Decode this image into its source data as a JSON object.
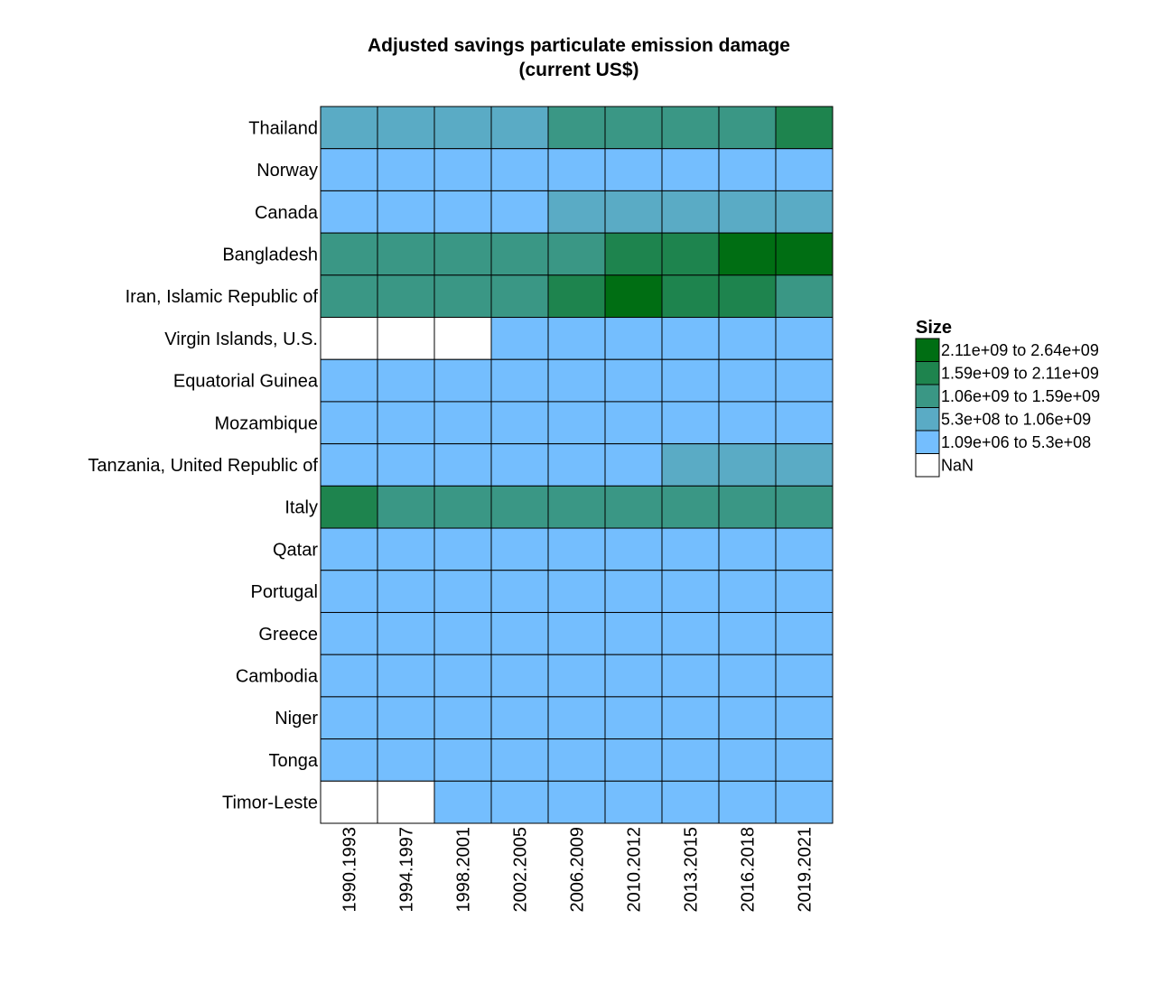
{
  "chart_data": {
    "type": "heatmap",
    "title": [
      "Adjusted savings particulate emission damage",
      "(current US$)"
    ],
    "rows": [
      "Thailand",
      "Norway",
      "Canada",
      "Bangladesh",
      "Iran, Islamic Republic of",
      "Virgin Islands, U.S.",
      "Equatorial Guinea",
      "Mozambique",
      "Tanzania, United Republic of",
      "Italy",
      "Qatar",
      "Portugal",
      "Greece",
      "Cambodia",
      "Niger",
      "Tonga",
      "Timor-Leste"
    ],
    "columns": [
      "1990.1993",
      "1994.1997",
      "1998.2001",
      "2002.2005",
      "2006.2009",
      "2010.2012",
      "2013.2015",
      "2016.2018",
      "2019.2021"
    ],
    "bin_index": [
      [
        1,
        1,
        1,
        1,
        2,
        2,
        2,
        2,
        3
      ],
      [
        0,
        0,
        0,
        0,
        0,
        0,
        0,
        0,
        0
      ],
      [
        0,
        0,
        0,
        0,
        1,
        1,
        1,
        1,
        1
      ],
      [
        2,
        2,
        2,
        2,
        2,
        3,
        3,
        4,
        4
      ],
      [
        2,
        2,
        2,
        2,
        3,
        4,
        3,
        3,
        2
      ],
      [
        -1,
        -1,
        -1,
        0,
        0,
        0,
        0,
        0,
        0
      ],
      [
        0,
        0,
        0,
        0,
        0,
        0,
        0,
        0,
        0
      ],
      [
        0,
        0,
        0,
        0,
        0,
        0,
        0,
        0,
        0
      ],
      [
        0,
        0,
        0,
        0,
        0,
        0,
        1,
        1,
        1
      ],
      [
        3,
        2,
        2,
        2,
        2,
        2,
        2,
        2,
        2
      ],
      [
        0,
        0,
        0,
        0,
        0,
        0,
        0,
        0,
        0
      ],
      [
        0,
        0,
        0,
        0,
        0,
        0,
        0,
        0,
        0
      ],
      [
        0,
        0,
        0,
        0,
        0,
        0,
        0,
        0,
        0
      ],
      [
        0,
        0,
        0,
        0,
        0,
        0,
        0,
        0,
        0
      ],
      [
        0,
        0,
        0,
        0,
        0,
        0,
        0,
        0,
        0
      ],
      [
        0,
        0,
        0,
        0,
        0,
        0,
        0,
        0,
        0
      ],
      [
        -1,
        -1,
        0,
        0,
        0,
        0,
        0,
        0,
        0
      ]
    ],
    "legend": {
      "title": "Size",
      "placement": "right",
      "bins": [
        {
          "label": "1.09e+06 to 5.3e+08",
          "color": "#74BEFE"
        },
        {
          "label": "5.3e+08 to 1.06e+09",
          "color": "#5AABC5"
        },
        {
          "label": "1.06e+09 to 1.59e+09",
          "color": "#3A9785"
        },
        {
          "label": "1.59e+09 to 2.11e+09",
          "color": "#1E844E"
        },
        {
          "label": "2.11e+09 to 2.64e+09",
          "color": "#006E13"
        }
      ],
      "nan": {
        "label": "NaN",
        "color": "#FFFFFF"
      }
    }
  }
}
